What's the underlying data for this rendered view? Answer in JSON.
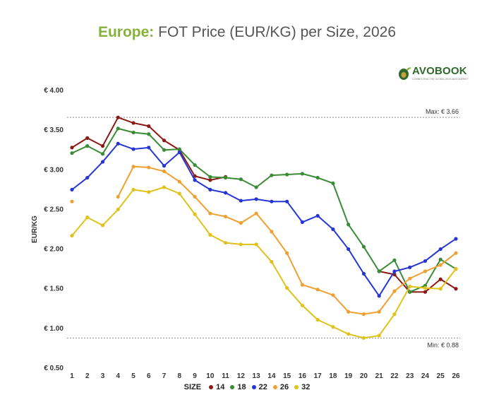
{
  "title": {
    "lead": "Europe:",
    "rest": "FOT Price (EUR/KG) per Size, 2026"
  },
  "logo": {
    "text": "AVOBOOK",
    "tagline": "CONNECTING THE GLOBAL AVOCADO MARKET",
    "color": "#2f6a2c"
  },
  "chart_data": {
    "type": "line",
    "x": [
      1,
      2,
      3,
      4,
      5,
      6,
      7,
      8,
      9,
      10,
      11,
      12,
      13,
      14,
      15,
      16,
      17,
      18,
      19,
      20,
      21,
      22,
      23,
      24,
      25,
      26
    ],
    "ylabel": "EUR/KG",
    "ylim": [
      0.5,
      4.0
    ],
    "yticks": [
      4.0,
      3.5,
      3.0,
      2.5,
      2.0,
      1.5,
      1.0,
      0.5
    ],
    "ytick_labels": [
      "€ 4.00",
      "€ 3.50",
      "€ 3.00",
      "€ 2.50",
      "€ 2.00",
      "€ 1.50",
      "€ 1.00",
      "€ 0.50"
    ],
    "grid": false,
    "legend_title": "SIZE",
    "legend_position": "bottom",
    "reference_lines": [
      {
        "label": "Max: € 3.66",
        "value": 3.66
      },
      {
        "label": "Min: € 0.88",
        "value": 0.88
      }
    ],
    "series": [
      {
        "name": "14",
        "color": "#8b1a14",
        "values": [
          3.28,
          3.4,
          3.3,
          3.66,
          3.59,
          3.55,
          3.37,
          3.25,
          2.92,
          2.87,
          2.91,
          null,
          null,
          null,
          null,
          null,
          null,
          null,
          null,
          null,
          1.72,
          1.68,
          1.46,
          1.46,
          1.62,
          1.5
        ]
      },
      {
        "name": "18",
        "color": "#3a8c35",
        "values": [
          3.21,
          3.3,
          3.2,
          3.52,
          3.47,
          3.45,
          3.25,
          3.26,
          3.06,
          2.91,
          2.9,
          2.88,
          2.78,
          2.93,
          2.94,
          2.95,
          2.9,
          2.83,
          2.31,
          2.03,
          1.72,
          1.86,
          1.46,
          1.54,
          1.87,
          1.75
        ]
      },
      {
        "name": "22",
        "color": "#2636d6",
        "values": [
          2.75,
          2.9,
          3.1,
          3.33,
          3.26,
          3.28,
          3.05,
          3.22,
          2.87,
          2.75,
          2.71,
          2.61,
          2.63,
          2.6,
          2.6,
          2.34,
          2.42,
          2.25,
          2.0,
          1.69,
          1.41,
          1.72,
          1.77,
          1.85,
          2.0,
          2.13
        ]
      },
      {
        "name": "26",
        "color": "#f0a030",
        "values": [
          2.6,
          null,
          null,
          2.66,
          3.04,
          3.03,
          2.98,
          2.85,
          2.66,
          2.45,
          2.41,
          2.33,
          2.45,
          2.22,
          1.95,
          1.55,
          1.49,
          1.42,
          1.21,
          1.18,
          1.21,
          1.47,
          1.63,
          1.72,
          1.8,
          1.95
        ]
      },
      {
        "name": "32",
        "color": "#e0c21a",
        "values": [
          2.17,
          2.4,
          2.3,
          2.5,
          2.75,
          2.72,
          2.78,
          2.7,
          2.44,
          2.18,
          2.08,
          2.06,
          2.06,
          1.84,
          1.51,
          1.29,
          1.11,
          1.02,
          0.93,
          0.88,
          0.91,
          1.18,
          1.53,
          1.51,
          1.5,
          1.75
        ]
      }
    ]
  }
}
